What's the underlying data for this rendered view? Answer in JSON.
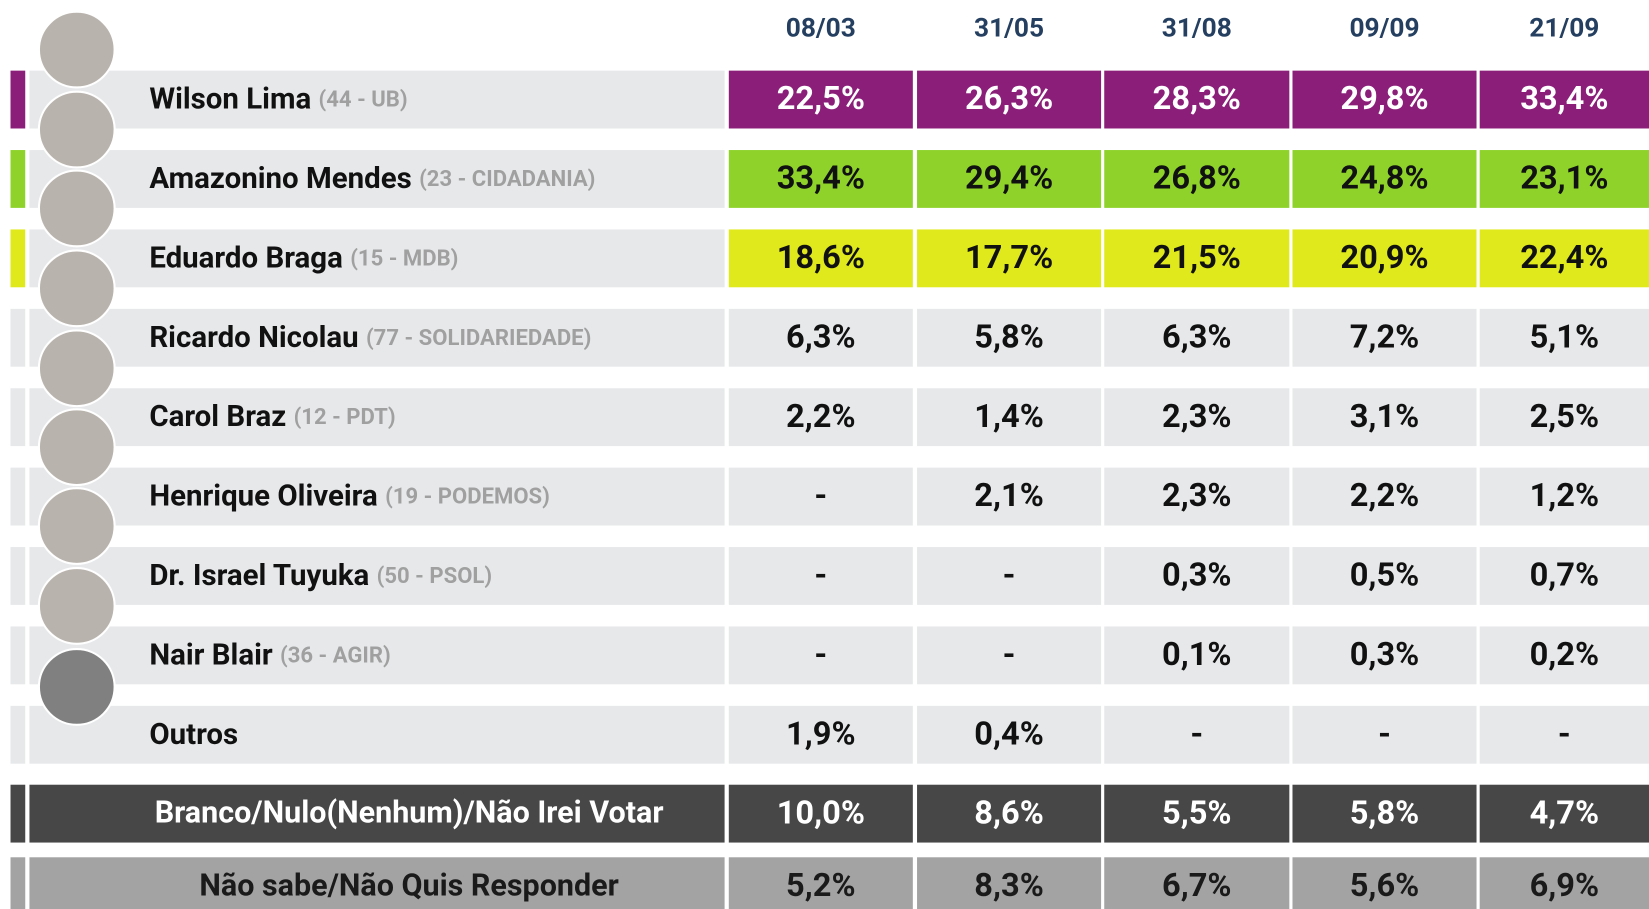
{
  "header": {
    "columns": [
      "08/03",
      "31/05",
      "31/08",
      "09/09",
      "21/09"
    ]
  },
  "rows": [
    {
      "name": "Wilson Lima",
      "info": "(44 - UB)",
      "color": "#8a1e78",
      "values": [
        "22,5%",
        "26,3%",
        "28,3%",
        "29,8%",
        "33,4%"
      ]
    },
    {
      "name": "Amazonino Mendes",
      "info": "(23 - CIDADANIA)",
      "color": "#8ed22a",
      "values": [
        "33,4%",
        "29,4%",
        "26,8%",
        "24,8%",
        "23,1%"
      ]
    },
    {
      "name": "Eduardo Braga",
      "info": "(15 - MDB)",
      "color": "#dfe91b",
      "values": [
        "18,6%",
        "17,7%",
        "21,5%",
        "20,9%",
        "22,4%"
      ]
    },
    {
      "name": "Ricardo Nicolau",
      "info": "(77 - SOLIDARIEDADE)",
      "values": [
        "6,3%",
        "5,8%",
        "6,3%",
        "7,2%",
        "5,1%"
      ]
    },
    {
      "name": "Carol Braz",
      "info": "(12 - PDT)",
      "values": [
        "2,2%",
        "1,4%",
        "2,3%",
        "3,1%",
        "2,5%"
      ]
    },
    {
      "name": "Henrique Oliveira",
      "info": "(19 - PODEMOS)",
      "values": [
        "-",
        "2,1%",
        "2,3%",
        "2,2%",
        "1,2%"
      ]
    },
    {
      "name": "Dr. Israel Tuyuka",
      "info": "(50 - PSOL)",
      "values": [
        "-",
        "-",
        "0,3%",
        "0,5%",
        "0,7%"
      ]
    },
    {
      "name": "Nair Blair",
      "info": "(36 - AGIR)",
      "values": [
        "-",
        "-",
        "0,1%",
        "0,3%",
        "0,2%"
      ]
    },
    {
      "name": "Outros",
      "values": [
        "1,9%",
        "0,4%",
        "-",
        "-",
        "-"
      ]
    }
  ],
  "summary_rows": [
    {
      "label": "Branco/Nulo(Nenhum)/Não Irei Votar",
      "values": [
        "10,0%",
        "8,6%",
        "5,5%",
        "5,8%",
        "4,7%"
      ]
    },
    {
      "label": "Não sabe/Não Quis Responder",
      "values": [
        "5,2%",
        "8,3%",
        "6,7%",
        "5,6%",
        "6,9%"
      ]
    }
  ]
}
